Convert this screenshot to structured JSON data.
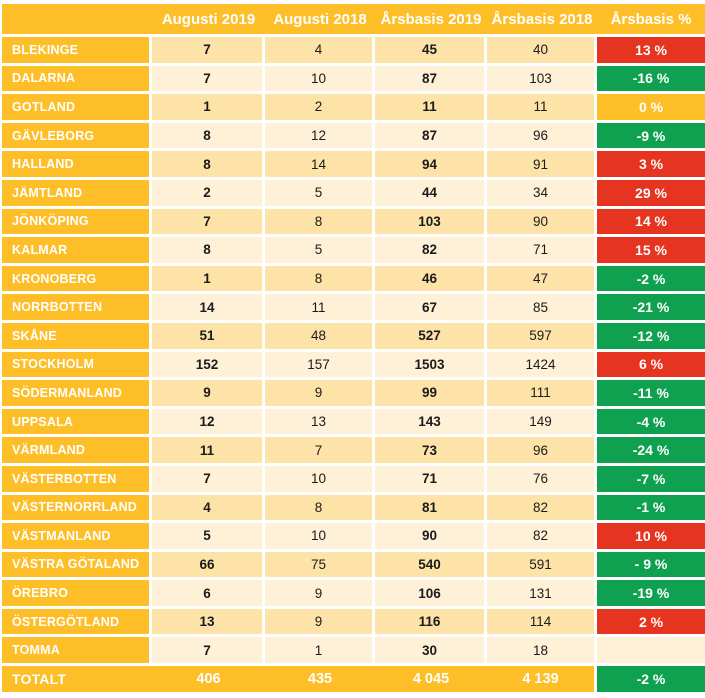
{
  "chart_data": {
    "type": "table",
    "columns": [
      "",
      "Augusti 2019",
      "Augusti 2018",
      "Årsbasis 2019",
      "Årsbasis 2018",
      "Årsbasis %"
    ],
    "rows": [
      {
        "name": "BLEKINGE",
        "aug_2019": "7",
        "aug_2018": "4",
        "ars_2019": "45",
        "ars_2018": "40",
        "ars_pct": "13 %",
        "pct_color": "red"
      },
      {
        "name": "DALARNA",
        "aug_2019": "7",
        "aug_2018": "10",
        "ars_2019": "87",
        "ars_2018": "103",
        "ars_pct": "-16 %",
        "pct_color": "green"
      },
      {
        "name": "GOTLAND",
        "aug_2019": "1",
        "aug_2018": "2",
        "ars_2019": "11",
        "ars_2018": "11",
        "ars_pct": "0 %",
        "pct_color": "orange"
      },
      {
        "name": "GÄVLEBORG",
        "aug_2019": "8",
        "aug_2018": "12",
        "ars_2019": "87",
        "ars_2018": "96",
        "ars_pct": "-9 %",
        "pct_color": "green"
      },
      {
        "name": "HALLAND",
        "aug_2019": "8",
        "aug_2018": "14",
        "ars_2019": "94",
        "ars_2018": "91",
        "ars_pct": "3 %",
        "pct_color": "red"
      },
      {
        "name": "JÄMTLAND",
        "aug_2019": "2",
        "aug_2018": "5",
        "ars_2019": "44",
        "ars_2018": "34",
        "ars_pct": "29 %",
        "pct_color": "red"
      },
      {
        "name": "JÖNKÖPING",
        "aug_2019": "7",
        "aug_2018": "8",
        "ars_2019": "103",
        "ars_2018": "90",
        "ars_pct": "14 %",
        "pct_color": "red"
      },
      {
        "name": "KALMAR",
        "aug_2019": "8",
        "aug_2018": "5",
        "ars_2019": "82",
        "ars_2018": "71",
        "ars_pct": "15 %",
        "pct_color": "red"
      },
      {
        "name": "KRONOBERG",
        "aug_2019": "1",
        "aug_2018": "8",
        "ars_2019": "46",
        "ars_2018": "47",
        "ars_pct": "-2 %",
        "pct_color": "green"
      },
      {
        "name": "NORRBOTTEN",
        "aug_2019": "14",
        "aug_2018": "11",
        "ars_2019": "67",
        "ars_2018": "85",
        "ars_pct": "-21 %",
        "pct_color": "green"
      },
      {
        "name": "SKÅNE",
        "aug_2019": "51",
        "aug_2018": "48",
        "ars_2019": "527",
        "ars_2018": "597",
        "ars_pct": "-12 %",
        "pct_color": "green"
      },
      {
        "name": "STOCKHOLM",
        "aug_2019": "152",
        "aug_2018": "157",
        "ars_2019": "1503",
        "ars_2018": "1424",
        "ars_pct": "6 %",
        "pct_color": "red"
      },
      {
        "name": "SÖDERMANLAND",
        "aug_2019": "9",
        "aug_2018": "9",
        "ars_2019": "99",
        "ars_2018": "111",
        "ars_pct": "-11 %",
        "pct_color": "green"
      },
      {
        "name": "UPPSALA",
        "aug_2019": "12",
        "aug_2018": "13",
        "ars_2019": "143",
        "ars_2018": "149",
        "ars_pct": "-4 %",
        "pct_color": "green"
      },
      {
        "name": "VÄRMLAND",
        "aug_2019": "11",
        "aug_2018": "7",
        "ars_2019": "73",
        "ars_2018": "96",
        "ars_pct": "-24 %",
        "pct_color": "green"
      },
      {
        "name": "VÄSTERBOTTEN",
        "aug_2019": "7",
        "aug_2018": "10",
        "ars_2019": "71",
        "ars_2018": "76",
        "ars_pct": "-7 %",
        "pct_color": "green"
      },
      {
        "name": "VÄSTERNORRLAND",
        "aug_2019": "4",
        "aug_2018": "8",
        "ars_2019": "81",
        "ars_2018": "82",
        "ars_pct": "-1 %",
        "pct_color": "green"
      },
      {
        "name": "VÄSTMANLAND",
        "aug_2019": "5",
        "aug_2018": "10",
        "ars_2019": "90",
        "ars_2018": "82",
        "ars_pct": "10 %",
        "pct_color": "red"
      },
      {
        "name": "VÄSTRA GÖTALAND",
        "aug_2019": "66",
        "aug_2018": "75",
        "ars_2019": "540",
        "ars_2018": "591",
        "ars_pct": "- 9 %",
        "pct_color": "green"
      },
      {
        "name": "ÖREBRO",
        "aug_2019": "6",
        "aug_2018": "9",
        "ars_2019": "106",
        "ars_2018": "131",
        "ars_pct": "-19 %",
        "pct_color": "green"
      },
      {
        "name": "ÖSTERGÖTLAND",
        "aug_2019": "13",
        "aug_2018": "9",
        "ars_2019": "116",
        "ars_2018": "114",
        "ars_pct": "2 %",
        "pct_color": "red"
      },
      {
        "name": "TOMMA",
        "aug_2019": "7",
        "aug_2018": "1",
        "ars_2019": "30",
        "ars_2018": "18",
        "ars_pct": "",
        "pct_color": "none"
      }
    ],
    "total": {
      "name": "TOTALT",
      "aug_2019": "406",
      "aug_2018": "435",
      "ars_2019": "4 045",
      "ars_2018": "4 139",
      "ars_pct": "-2 %",
      "pct_color": "green"
    }
  },
  "colors": {
    "accent_orange": "#FEBE28",
    "band_dark": "#FDE3A7",
    "band_light": "#FEF1D8",
    "increase_red": "#E5341F",
    "decrease_green": "#0FA050",
    "text_dark": "#1B1B1B",
    "text_light": "#FFFFFF"
  }
}
